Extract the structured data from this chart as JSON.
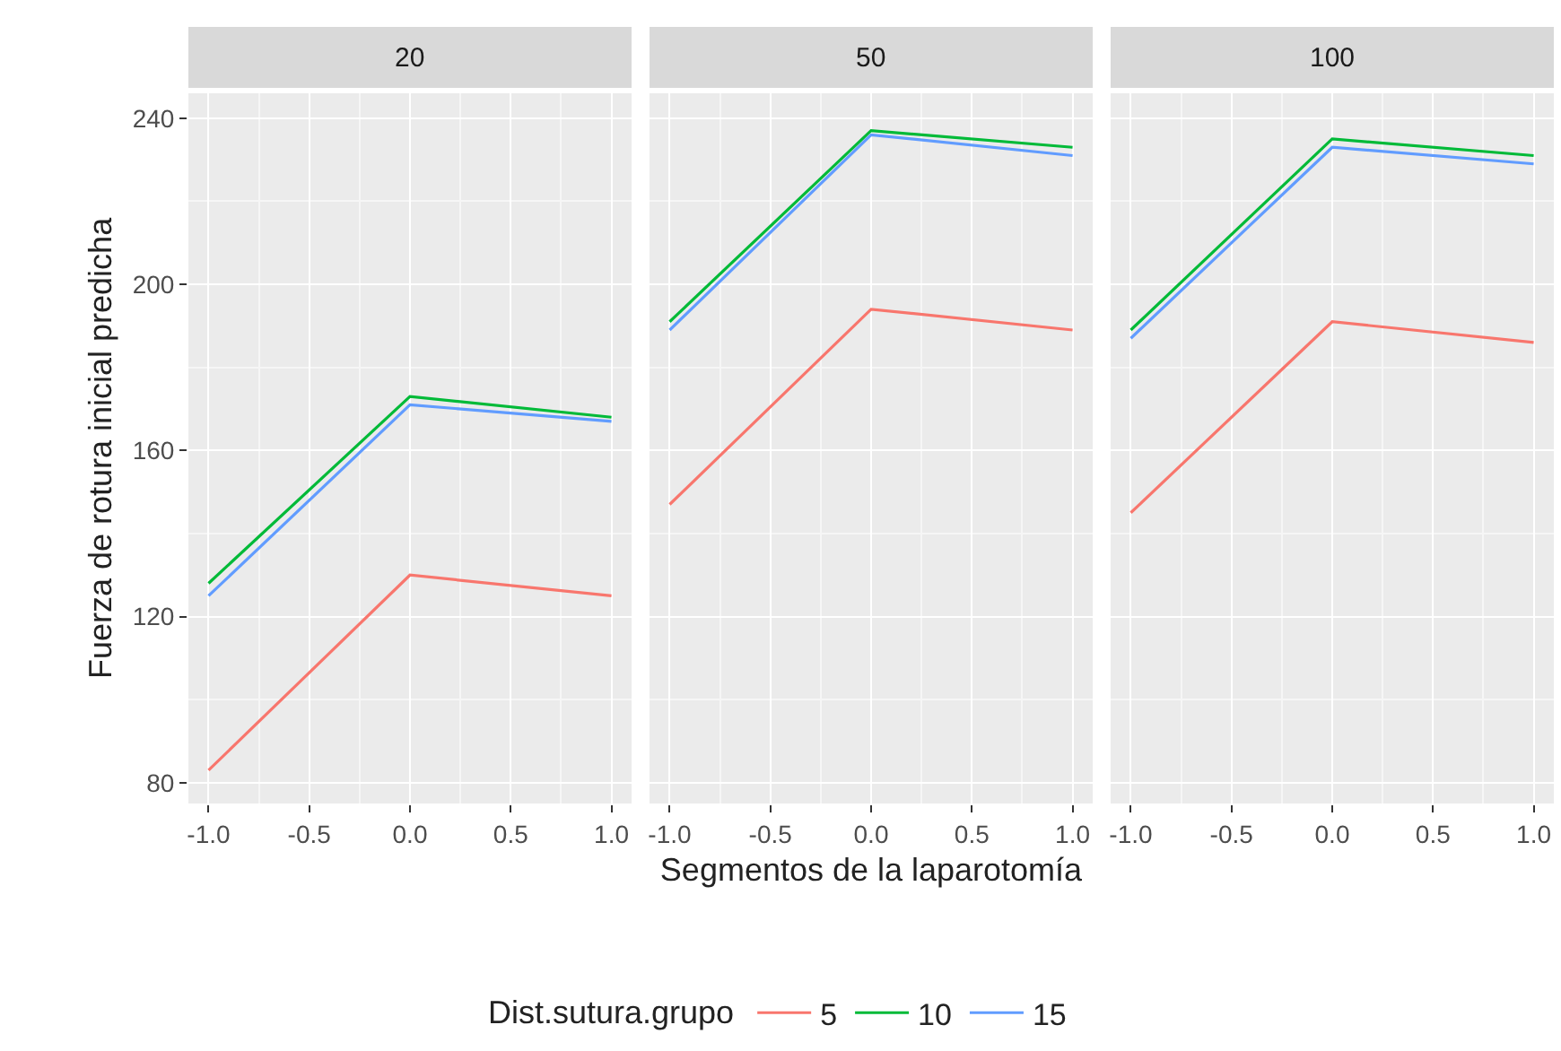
{
  "chart_data": [
    {
      "type": "line",
      "title": "20",
      "ylabel": "Fuerza de rotura inicial predicha",
      "legend_title": "Dist.sutura.grupo",
      "legend": "bottom",
      "grid": true,
      "marker": "none",
      "line_style": "solid",
      "x": [
        -1,
        0,
        1
      ],
      "xlim": [
        -1.1,
        1.1
      ],
      "xticks": [
        {
          "value": -1,
          "label": "-1.0"
        },
        {
          "value": -0.5,
          "label": "-0.5"
        },
        {
          "value": 0,
          "label": "0.0"
        },
        {
          "value": 0.5,
          "label": "0.5"
        },
        {
          "value": 1,
          "label": "1.0"
        }
      ],
      "ylim": [
        75,
        246
      ],
      "yticks": [
        80,
        120,
        160,
        200,
        240
      ],
      "series": [
        {
          "name": "5",
          "color": "#f8766d",
          "values": [
            83,
            130,
            125
          ]
        },
        {
          "name": "10",
          "color": "#00ba38",
          "values": [
            128,
            173,
            168
          ]
        },
        {
          "name": "15",
          "color": "#619cff",
          "values": [
            125,
            171,
            167
          ]
        }
      ]
    },
    {
      "type": "line",
      "title": "50",
      "xlabel": "Segmentos de la laparotomía",
      "grid": true,
      "marker": "none",
      "line_style": "solid",
      "tick_labels": "x",
      "x": [
        -1,
        0,
        1
      ],
      "xlim": [
        -1.1,
        1.1
      ],
      "xticks": [
        {
          "value": -1,
          "label": "-1.0"
        },
        {
          "value": -0.5,
          "label": "-0.5"
        },
        {
          "value": 0,
          "label": "0.0"
        },
        {
          "value": 0.5,
          "label": "0.5"
        },
        {
          "value": 1,
          "label": "1.0"
        }
      ],
      "ylim": [
        75,
        246
      ],
      "yticks": [
        80,
        120,
        160,
        200,
        240
      ],
      "series": [
        {
          "name": "5",
          "color": "#f8766d",
          "values": [
            147,
            194,
            189
          ]
        },
        {
          "name": "10",
          "color": "#00ba38",
          "values": [
            191,
            237,
            233
          ]
        },
        {
          "name": "15",
          "color": "#619cff",
          "values": [
            189,
            236,
            231
          ]
        }
      ]
    },
    {
      "type": "line",
      "title": "100",
      "grid": true,
      "marker": "none",
      "line_style": "solid",
      "tick_labels": "x",
      "x": [
        -1,
        0,
        1
      ],
      "xlim": [
        -1.1,
        1.1
      ],
      "xticks": [
        {
          "value": -1,
          "label": "-1.0"
        },
        {
          "value": -0.5,
          "label": "-0.5"
        },
        {
          "value": 0,
          "label": "0.0"
        },
        {
          "value": 0.5,
          "label": "0.5"
        },
        {
          "value": 1,
          "label": "1.0"
        }
      ],
      "ylim": [
        75,
        246
      ],
      "yticks": [
        80,
        120,
        160,
        200,
        240
      ],
      "series": [
        {
          "name": "5",
          "color": "#f8766d",
          "values": [
            145,
            191,
            186
          ]
        },
        {
          "name": "10",
          "color": "#00ba38",
          "values": [
            189,
            235,
            231
          ]
        },
        {
          "name": "15",
          "color": "#619cff",
          "values": [
            187,
            233,
            229
          ]
        }
      ]
    }
  ]
}
